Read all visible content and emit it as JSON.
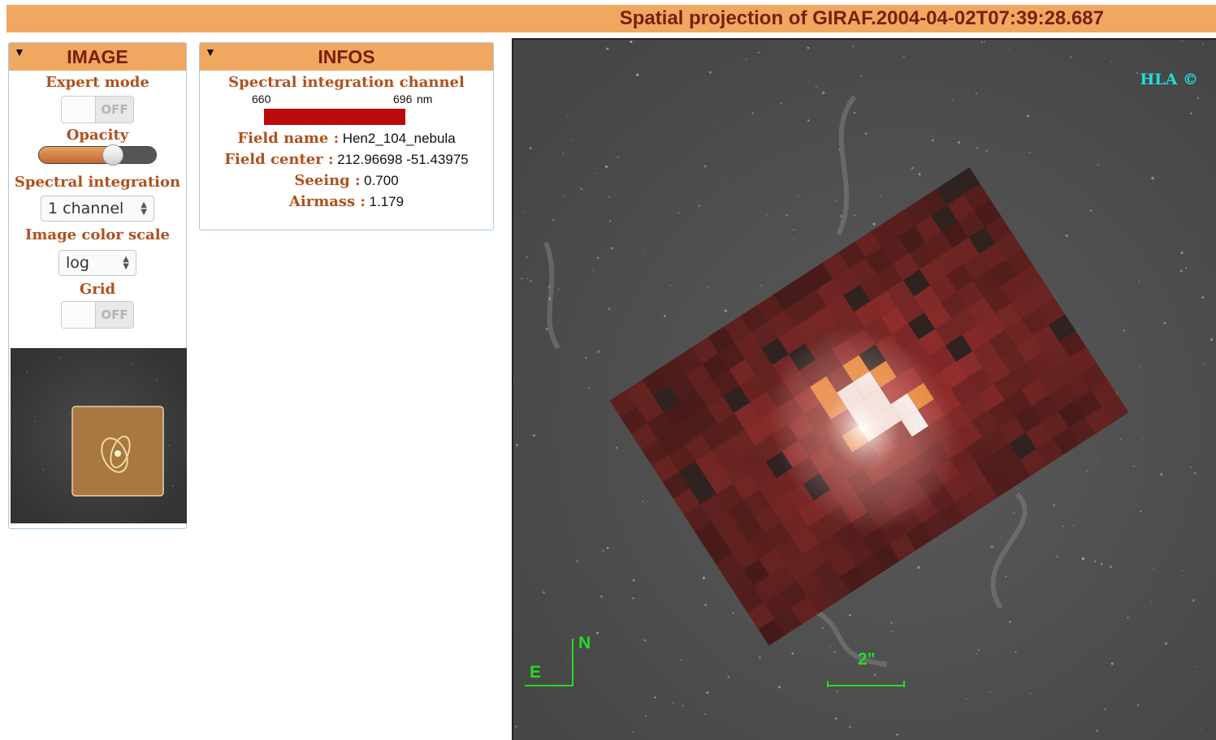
{
  "window": {
    "title": "Spatial projection of GIRAF.2004-04-02T07:39:28.687"
  },
  "image_panel": {
    "header": "IMAGE",
    "collapse_icon": "triangle-down-icon",
    "expert_mode_label": "Expert mode",
    "expert_mode_state": "OFF",
    "opacity_label": "Opacity",
    "opacity_value": 0.62,
    "spectral_integration_label": "Spectral integration",
    "spectral_integration_value": "1 channel",
    "color_scale_label": "Image color scale",
    "color_scale_value": "log",
    "grid_label": "Grid",
    "grid_state": "OFF"
  },
  "infos_panel": {
    "header": "INFOS",
    "collapse_icon": "triangle-down-icon",
    "channel_label": "Spectral integration channel",
    "channel_min": "660",
    "channel_max": "696",
    "channel_unit": "nm",
    "channel_color": "#bb0a0a",
    "field_name_label": "Field name :",
    "field_name_value": "Hen2_104_nebula",
    "field_center_label": "Field center :",
    "field_center_value": "212.96698 -51.43975",
    "seeing_label": "Seeing :",
    "seeing_value": "0.700",
    "airmass_label": "Airmass :",
    "airmass_value": "1.179"
  },
  "sky_view": {
    "credit": "HLA ©",
    "compass_north": "N",
    "compass_east": "E",
    "scale_label": "2\"",
    "overlay_color": "#b03020",
    "compass_color": "#22dd22",
    "credit_color": "#22dddd"
  }
}
